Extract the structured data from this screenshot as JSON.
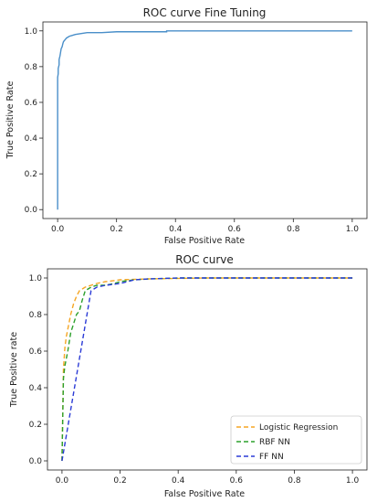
{
  "chart_data": [
    {
      "type": "line",
      "title": "ROC curve Fine Tuning",
      "xlabel": "False Positive Rate",
      "ylabel": "True Positive Rate",
      "xlim": [
        -0.05,
        1.05
      ],
      "ylim": [
        -0.05,
        1.05
      ],
      "xticks": [
        "0.0",
        "0.2",
        "0.4",
        "0.6",
        "0.8",
        "1.0"
      ],
      "yticks": [
        "0.0",
        "0.2",
        "0.4",
        "0.6",
        "0.8",
        "1.0"
      ],
      "grid": false,
      "series": [
        {
          "color": "#4a8fc9",
          "dash": "solid",
          "x": [
            0,
            0,
            0.002,
            0.002,
            0.005,
            0.005,
            0.008,
            0.01,
            0.012,
            0.015,
            0.018,
            0.02,
            0.025,
            0.03,
            0.04,
            0.05,
            0.06,
            0.08,
            0.1,
            0.15,
            0.2,
            0.37,
            0.37,
            1.0
          ],
          "y": [
            0,
            0.74,
            0.76,
            0.79,
            0.81,
            0.84,
            0.86,
            0.88,
            0.9,
            0.91,
            0.93,
            0.94,
            0.95,
            0.96,
            0.97,
            0.975,
            0.98,
            0.985,
            0.99,
            0.99,
            0.995,
            0.995,
            1.0,
            1.0
          ]
        }
      ]
    },
    {
      "type": "line",
      "title": "ROC curve",
      "xlabel": "False Positive Rate",
      "ylabel": "True Positive rate",
      "xlim": [
        -0.05,
        1.05
      ],
      "ylim": [
        -0.05,
        1.05
      ],
      "xticks": [
        "0.0",
        "0.2",
        "0.4",
        "0.6",
        "0.8",
        "1.0"
      ],
      "yticks": [
        "0.0",
        "0.2",
        "0.4",
        "0.6",
        "0.8",
        "1.0"
      ],
      "grid": false,
      "legend": "bottom-right",
      "series": [
        {
          "name": "Logistic Regression",
          "color": "#f5a623",
          "dash": "dashed",
          "x": [
            0,
            0.005,
            0.01,
            0.015,
            0.02,
            0.03,
            0.04,
            0.05,
            0.06,
            0.08,
            0.1,
            0.12,
            0.15,
            0.2,
            0.3,
            0.5,
            1.0
          ],
          "y": [
            0,
            0.5,
            0.62,
            0.68,
            0.72,
            0.8,
            0.86,
            0.9,
            0.93,
            0.95,
            0.96,
            0.97,
            0.98,
            0.99,
            0.995,
            1.0,
            1.0
          ]
        },
        {
          "name": "RBF NN",
          "color": "#2ca02c",
          "dash": "dashed",
          "x": [
            0,
            0.005,
            0.01,
            0.02,
            0.03,
            0.04,
            0.05,
            0.06,
            0.07,
            0.08,
            0.1,
            0.12,
            0.15,
            0.18,
            0.2,
            0.25,
            0.3,
            0.4,
            1.0
          ],
          "y": [
            0,
            0.45,
            0.52,
            0.6,
            0.7,
            0.75,
            0.8,
            0.82,
            0.88,
            0.93,
            0.95,
            0.96,
            0.96,
            0.97,
            0.98,
            0.99,
            0.995,
            1.0,
            1.0
          ]
        },
        {
          "name": "FF NN",
          "color": "#2b3bd6",
          "dash": "dashed",
          "x": [
            0,
            0.1,
            0.12,
            0.15,
            0.2,
            0.25,
            0.3,
            0.4,
            1.0
          ],
          "y": [
            0,
            0.93,
            0.95,
            0.96,
            0.97,
            0.99,
            0.995,
            1.0,
            1.0
          ]
        }
      ]
    }
  ]
}
